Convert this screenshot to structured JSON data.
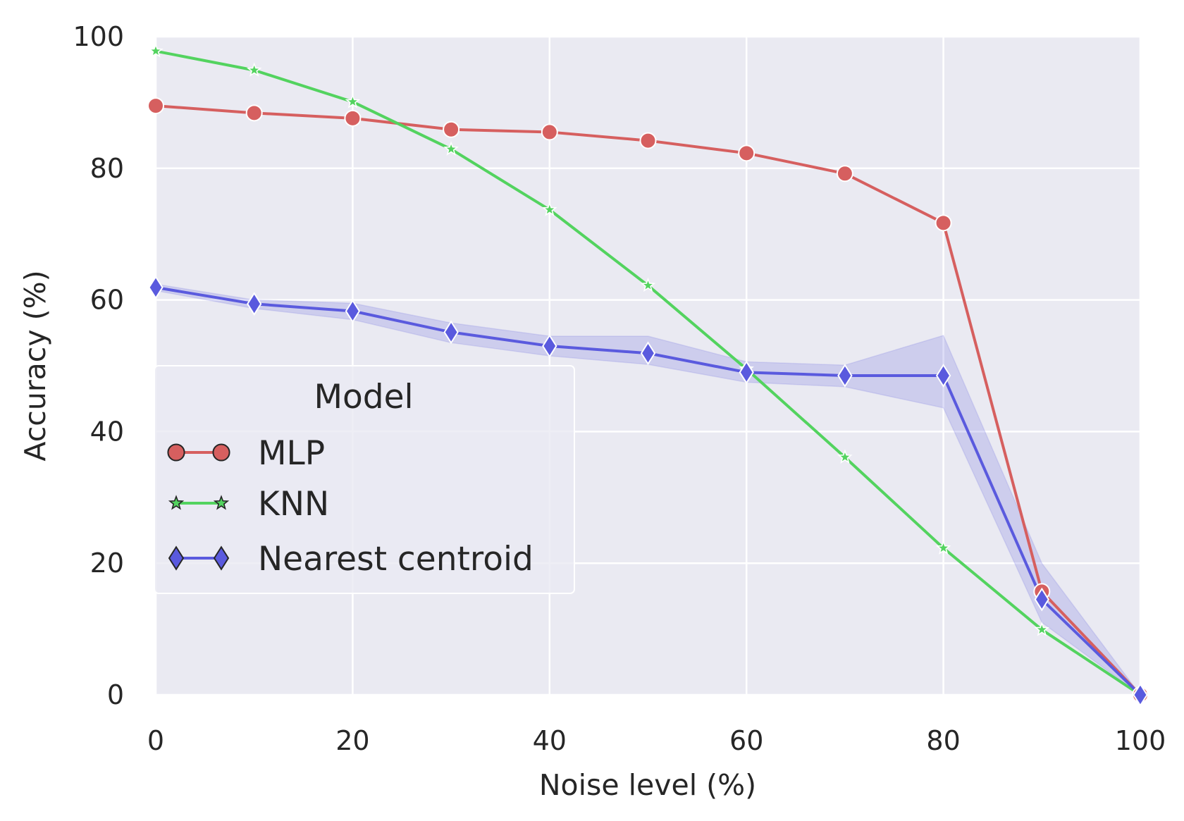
{
  "chart_data": {
    "type": "line",
    "title": "",
    "xlabel": "Noise level (%)",
    "ylabel": "Accuracy (%)",
    "xlim": [
      0,
      100
    ],
    "ylim": [
      0,
      100
    ],
    "xticks": [
      0,
      20,
      40,
      60,
      80,
      100
    ],
    "yticks": [
      0,
      20,
      40,
      60,
      80,
      100
    ],
    "grid": true,
    "x": [
      0,
      10,
      20,
      30,
      40,
      50,
      60,
      70,
      80,
      90,
      100
    ],
    "legend": {
      "title": "Model",
      "placement": "center-left"
    },
    "series": [
      {
        "name": "MLP",
        "marker": "circle",
        "color": "#d65f5f",
        "values": [
          89.5,
          88.4,
          87.6,
          85.9,
          85.5,
          84.2,
          82.3,
          79.2,
          71.7,
          15.7,
          0.0
        ]
      },
      {
        "name": "KNN",
        "marker": "star",
        "color": "#53d35f",
        "values": [
          97.8,
          94.9,
          90.1,
          82.9,
          73.7,
          62.2,
          49.5,
          36.1,
          22.3,
          9.9,
          0.0
        ]
      },
      {
        "name": "Nearest centroid",
        "marker": "diamond",
        "color": "#5a5ade",
        "values": [
          61.9,
          59.4,
          58.3,
          55.1,
          53.0,
          51.9,
          49.0,
          48.5,
          48.5,
          14.5,
          0.0
        ],
        "ci_lower": [
          61.4,
          58.7,
          57.0,
          53.5,
          51.5,
          50.2,
          47.5,
          46.8,
          43.6,
          11.0,
          0.0
        ],
        "ci_upper": [
          62.4,
          60.0,
          59.5,
          56.5,
          54.5,
          54.5,
          50.6,
          50.1,
          54.6,
          20.0,
          0.0
        ]
      }
    ]
  }
}
